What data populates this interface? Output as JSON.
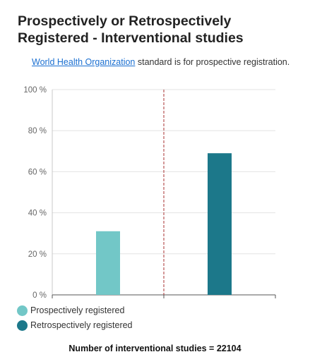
{
  "title": "Prospectively or Retrospectively Registered - Interventional studies",
  "note": {
    "link_text": "World Health Organization",
    "text": " standard is for prospective registration."
  },
  "chart_data": {
    "type": "bar",
    "categories": [
      "Prospectively registered",
      "Retrospectively registered"
    ],
    "values": [
      31,
      69
    ],
    "colors": [
      "#72c7c7",
      "#1c788a"
    ],
    "ylim": [
      0,
      100
    ],
    "yticks": [
      0,
      20,
      40,
      60,
      80,
      100
    ],
    "ytick_labels": [
      "0 %",
      "20 %",
      "40 %",
      "60 %",
      "80 %",
      "100 %"
    ],
    "reference_line": {
      "style": "dashed",
      "color": "#a83232",
      "position": "between categories"
    },
    "grid": true,
    "legend_position": "bottom-left",
    "legend": [
      "Prospectively registered",
      "Retrospectively registered"
    ]
  },
  "footer": "Number of interventional studies = 22104"
}
